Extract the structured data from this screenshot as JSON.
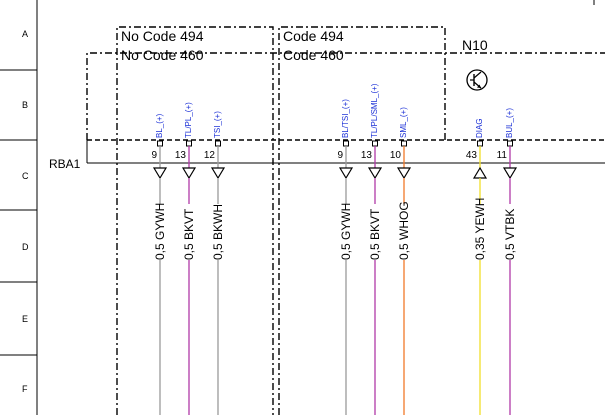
{
  "rows": [
    "A",
    "B",
    "C",
    "D",
    "E",
    "F"
  ],
  "variant_boxes": [
    {
      "line1": "No  Code 494",
      "line2": "No  Code 460"
    },
    {
      "line1": "Code 494",
      "line2": "Code 460"
    }
  ],
  "component": {
    "name": "N10",
    "symbol": "transistor-icon"
  },
  "connector": {
    "name": "RBA1"
  },
  "pins": [
    {
      "signal": "BL_(+)",
      "pin": "9",
      "wire": "0,5 GYWH",
      "color": "#9a9a9a",
      "direction": "out"
    },
    {
      "signal": "TL/PL_(+)",
      "pin": "13",
      "wire": "0,5 BKVT",
      "color": "#b03aa8",
      "direction": "out"
    },
    {
      "signal": "TSI_(+)",
      "pin": "12",
      "wire": "0,5 BKWH",
      "color": "#9a9a9a",
      "direction": "out"
    },
    {
      "signal": "BL/TSI_(+)",
      "pin": "9",
      "wire": "0,5 GYWH",
      "color": "#9a9a9a",
      "direction": "out"
    },
    {
      "signal": "TL/PL/SML_(+)",
      "pin": "13",
      "wire": "0,5 BKVT",
      "color": "#b03aa8",
      "direction": "out"
    },
    {
      "signal": "SML_(+)",
      "pin": "10",
      "wire": "0,5 WHOG",
      "color": "#f07a2a",
      "direction": "out"
    },
    {
      "signal": "DIAG",
      "pin": "43",
      "wire": "0,35 YEWH",
      "color": "#f2de2a",
      "direction": "in"
    },
    {
      "signal": "BUL_(+)",
      "pin": "11",
      "wire": "0,5 VTBK",
      "color": "#b03aa8",
      "direction": "out"
    }
  ]
}
